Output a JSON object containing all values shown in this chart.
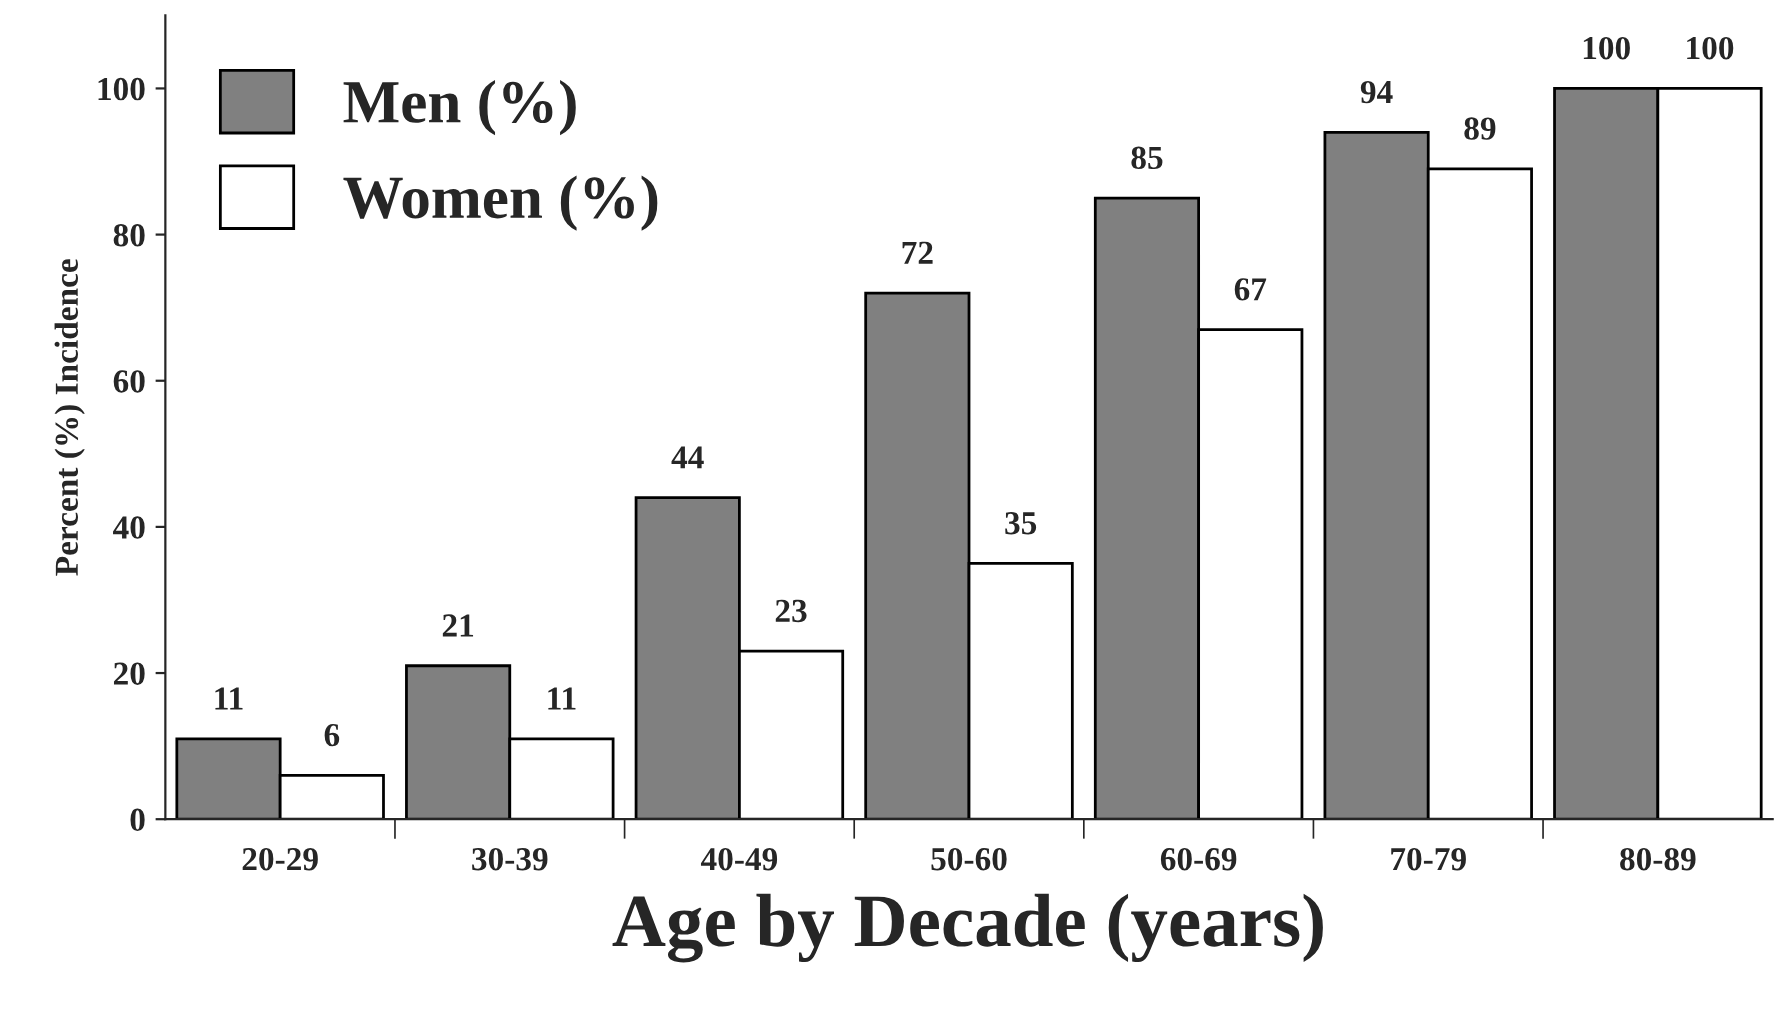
{
  "chart_data": {
    "type": "bar",
    "xlabel": "Age by Decade (years)",
    "ylabel": "Percent (%) Incidence",
    "categories": [
      "20-29",
      "30-39",
      "40-49",
      "50-60",
      "60-69",
      "70-79",
      "80-89"
    ],
    "series": [
      {
        "name": "Men (%)",
        "color": "#808080",
        "values": [
          11,
          21,
          44,
          72,
          85,
          94,
          100
        ]
      },
      {
        "name": "Women (%)",
        "color": "#ffffff",
        "values": [
          6,
          11,
          23,
          35,
          67,
          89,
          100
        ]
      }
    ],
    "ylim": [
      0,
      110
    ],
    "yticks": [
      0,
      20,
      40,
      60,
      80,
      100
    ],
    "data_labels": true,
    "legend": "top left",
    "grid": false
  }
}
